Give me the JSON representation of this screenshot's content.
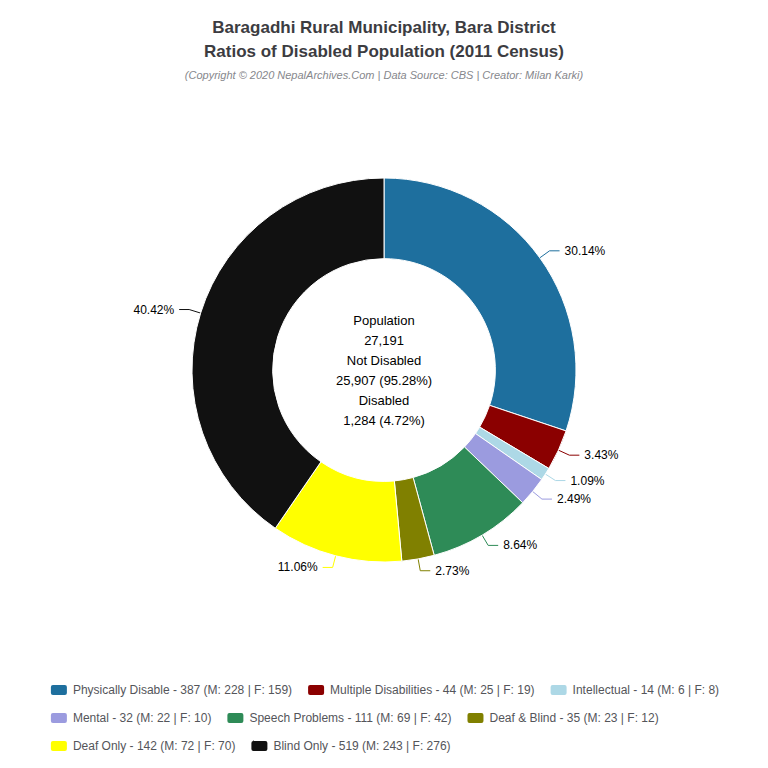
{
  "chart_data": {
    "type": "pie",
    "title": "Baragadhi Rural Municipality, Bara District\nRatios of Disabled Population (2011 Census)",
    "subtitle": "(Copyright © 2020 NepalArchives.Com | Data Source: CBS | Creator: Milan Karki)",
    "categories": [
      "Physically Disable - 387 (M: 228 | F: 159)",
      "Multiple Disabilities - 44 (M: 25 | F: 19)",
      "Intellectual - 14 (M: 6 | F: 8)",
      "Mental - 32 (M: 22 | F: 10)",
      "Speech Problems - 111 (M: 69 | F: 42)",
      "Deaf & Blind - 35 (M: 23 | F: 12)",
      "Deaf Only - 142 (M: 72 | F: 70)",
      "Blind Only - 519 (M: 243 | F: 276)"
    ],
    "values": [
      30.14,
      3.43,
      1.09,
      2.49,
      8.64,
      2.73,
      11.06,
      40.42
    ],
    "value_labels": [
      "30.14%",
      "3.43%",
      "1.09%",
      "2.49%",
      "8.64%",
      "2.73%",
      "11.06%",
      "40.42%"
    ],
    "colors": [
      "#1e6f9e",
      "#8b0000",
      "#add8e6",
      "#9b9bdf",
      "#2e8b57",
      "#808000",
      "#ffff00",
      "#111111"
    ],
    "annotations": [
      "Population",
      "27,191",
      "Not Disabled",
      "25,907 (95.28%)",
      "Disabled",
      "1,284 (4.72%)"
    ],
    "data_labels": true,
    "legend": "bottom"
  }
}
